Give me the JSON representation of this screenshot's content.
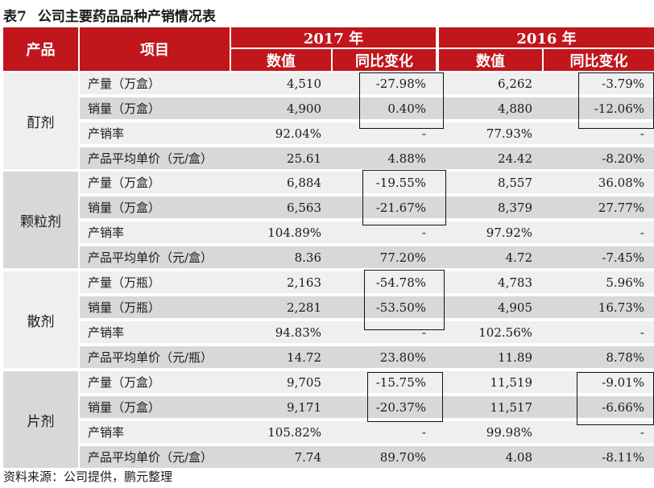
{
  "title": {
    "label": "表7",
    "text": "公司主要药品品种产销情况表"
  },
  "header": {
    "product": "产品",
    "item": "项目",
    "year_2017": "2017 年",
    "year_2016": "2016 年",
    "value": "数值",
    "yoy": "同比变化"
  },
  "groups": [
    {
      "name": "酊剂",
      "rows": [
        {
          "item": "产量（万盒）",
          "v2017": "4,510",
          "c2017": "-27.98%",
          "v2016": "6,262",
          "c2016": "-3.79%"
        },
        {
          "item": "销量（万盒）",
          "v2017": "4,900",
          "c2017": "0.40%",
          "v2016": "4,880",
          "c2016": "-12.06%"
        },
        {
          "item": "产销率",
          "v2017": "92.04%",
          "c2017": "-",
          "v2016": "77.93%",
          "c2016": "-"
        },
        {
          "item": "产品平均单价（元/盒）",
          "v2017": "25.61",
          "c2017": "4.88%",
          "v2016": "24.42",
          "c2016": "-8.20%"
        }
      ]
    },
    {
      "name": "颗粒剂",
      "rows": [
        {
          "item": "产量（万盒）",
          "v2017": "6,884",
          "c2017": "-19.55%",
          "v2016": "8,557",
          "c2016": "36.08%"
        },
        {
          "item": "销量（万盒）",
          "v2017": "6,563",
          "c2017": "-21.67%",
          "v2016": "8,379",
          "c2016": "27.77%"
        },
        {
          "item": "产销率",
          "v2017": "104.89%",
          "c2017": "-",
          "v2016": "97.92%",
          "c2016": "-"
        },
        {
          "item": "产品平均单价（元/盒）",
          "v2017": "8.36",
          "c2017": "77.20%",
          "v2016": "4.72",
          "c2016": "-7.45%"
        }
      ]
    },
    {
      "name": "散剂",
      "rows": [
        {
          "item": "产量（万瓶）",
          "v2017": "2,163",
          "c2017": "-54.78%",
          "v2016": "4,783",
          "c2016": "5.96%"
        },
        {
          "item": "销量（万瓶）",
          "v2017": "2,281",
          "c2017": "-53.50%",
          "v2016": "4,905",
          "c2016": "16.73%"
        },
        {
          "item": "产销率",
          "v2017": "94.83%",
          "c2017": "-",
          "v2016": "102.56%",
          "c2016": "-"
        },
        {
          "item": "产品平均单价（元/瓶）",
          "v2017": "14.72",
          "c2017": "23.80%",
          "v2016": "11.89",
          "c2016": "8.78%"
        }
      ]
    },
    {
      "name": "片剂",
      "rows": [
        {
          "item": "产量（万盒）",
          "v2017": "9,705",
          "c2017": "-15.75%",
          "v2016": "11,519",
          "c2016": "-9.01%"
        },
        {
          "item": "销量（万盒）",
          "v2017": "9,171",
          "c2017": "-20.37%",
          "v2016": "11,517",
          "c2016": "-6.66%"
        },
        {
          "item": "产销率",
          "v2017": "105.82%",
          "c2017": "-",
          "v2016": "99.98%",
          "c2016": "-"
        },
        {
          "item": "产品平均单价（元/盒）",
          "v2017": "7.74",
          "c2017": "89.70%",
          "v2016": "4.08",
          "c2016": "-8.11%"
        }
      ]
    }
  ],
  "source": "资料来源：公司提供，鹏元整理"
}
